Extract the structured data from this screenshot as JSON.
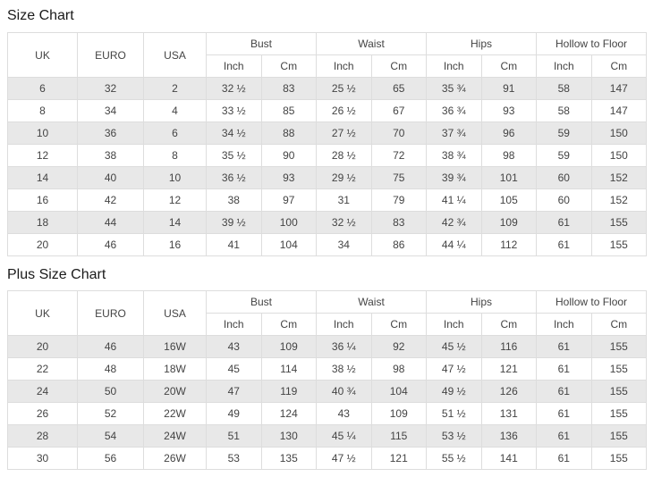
{
  "colors": {
    "stripe": "#e8e8e8",
    "border": "#dddddd",
    "cell_text": "#444444",
    "title_text": "#1a1a1a",
    "background": "#ffffff"
  },
  "size_chart": {
    "title": "Size Chart",
    "header": {
      "uk": "UK",
      "euro": "EURO",
      "usa": "USA",
      "bust": "Bust",
      "waist": "Waist",
      "hips": "Hips",
      "hollow_to_floor": "Hollow to Floor",
      "inch": "Inch",
      "cm": "Cm"
    },
    "rows": [
      [
        "6",
        "32",
        "2",
        "32 ½",
        "83",
        "25 ½",
        "65",
        "35 ¾",
        "91",
        "58",
        "147"
      ],
      [
        "8",
        "34",
        "4",
        "33 ½",
        "85",
        "26 ½",
        "67",
        "36 ¾",
        "93",
        "58",
        "147"
      ],
      [
        "10",
        "36",
        "6",
        "34 ½",
        "88",
        "27 ½",
        "70",
        "37 ¾",
        "96",
        "59",
        "150"
      ],
      [
        "12",
        "38",
        "8",
        "35 ½",
        "90",
        "28 ½",
        "72",
        "38 ¾",
        "98",
        "59",
        "150"
      ],
      [
        "14",
        "40",
        "10",
        "36 ½",
        "93",
        "29 ½",
        "75",
        "39 ¾",
        "101",
        "60",
        "152"
      ],
      [
        "16",
        "42",
        "12",
        "38",
        "97",
        "31",
        "79",
        "41 ¼",
        "105",
        "60",
        "152"
      ],
      [
        "18",
        "44",
        "14",
        "39 ½",
        "100",
        "32 ½",
        "83",
        "42 ¾",
        "109",
        "61",
        "155"
      ],
      [
        "20",
        "46",
        "16",
        "41",
        "104",
        "34",
        "86",
        "44 ¼",
        "112",
        "61",
        "155"
      ]
    ]
  },
  "plus_size_chart": {
    "title": "Plus Size Chart",
    "header": {
      "uk": "UK",
      "euro": "EURO",
      "usa": "USA",
      "bust": "Bust",
      "waist": "Waist",
      "hips": "Hips",
      "hollow_to_floor": "Hollow to Floor",
      "inch": "Inch",
      "cm": "Cm"
    },
    "rows": [
      [
        "20",
        "46",
        "16W",
        "43",
        "109",
        "36 ¼",
        "92",
        "45 ½",
        "116",
        "61",
        "155"
      ],
      [
        "22",
        "48",
        "18W",
        "45",
        "114",
        "38 ½",
        "98",
        "47 ½",
        "121",
        "61",
        "155"
      ],
      [
        "24",
        "50",
        "20W",
        "47",
        "119",
        "40 ¾",
        "104",
        "49 ½",
        "126",
        "61",
        "155"
      ],
      [
        "26",
        "52",
        "22W",
        "49",
        "124",
        "43",
        "109",
        "51 ½",
        "131",
        "61",
        "155"
      ],
      [
        "28",
        "54",
        "24W",
        "51",
        "130",
        "45 ¼",
        "115",
        "53 ½",
        "136",
        "61",
        "155"
      ],
      [
        "30",
        "56",
        "26W",
        "53",
        "135",
        "47 ½",
        "121",
        "55 ½",
        "141",
        "61",
        "155"
      ]
    ]
  }
}
